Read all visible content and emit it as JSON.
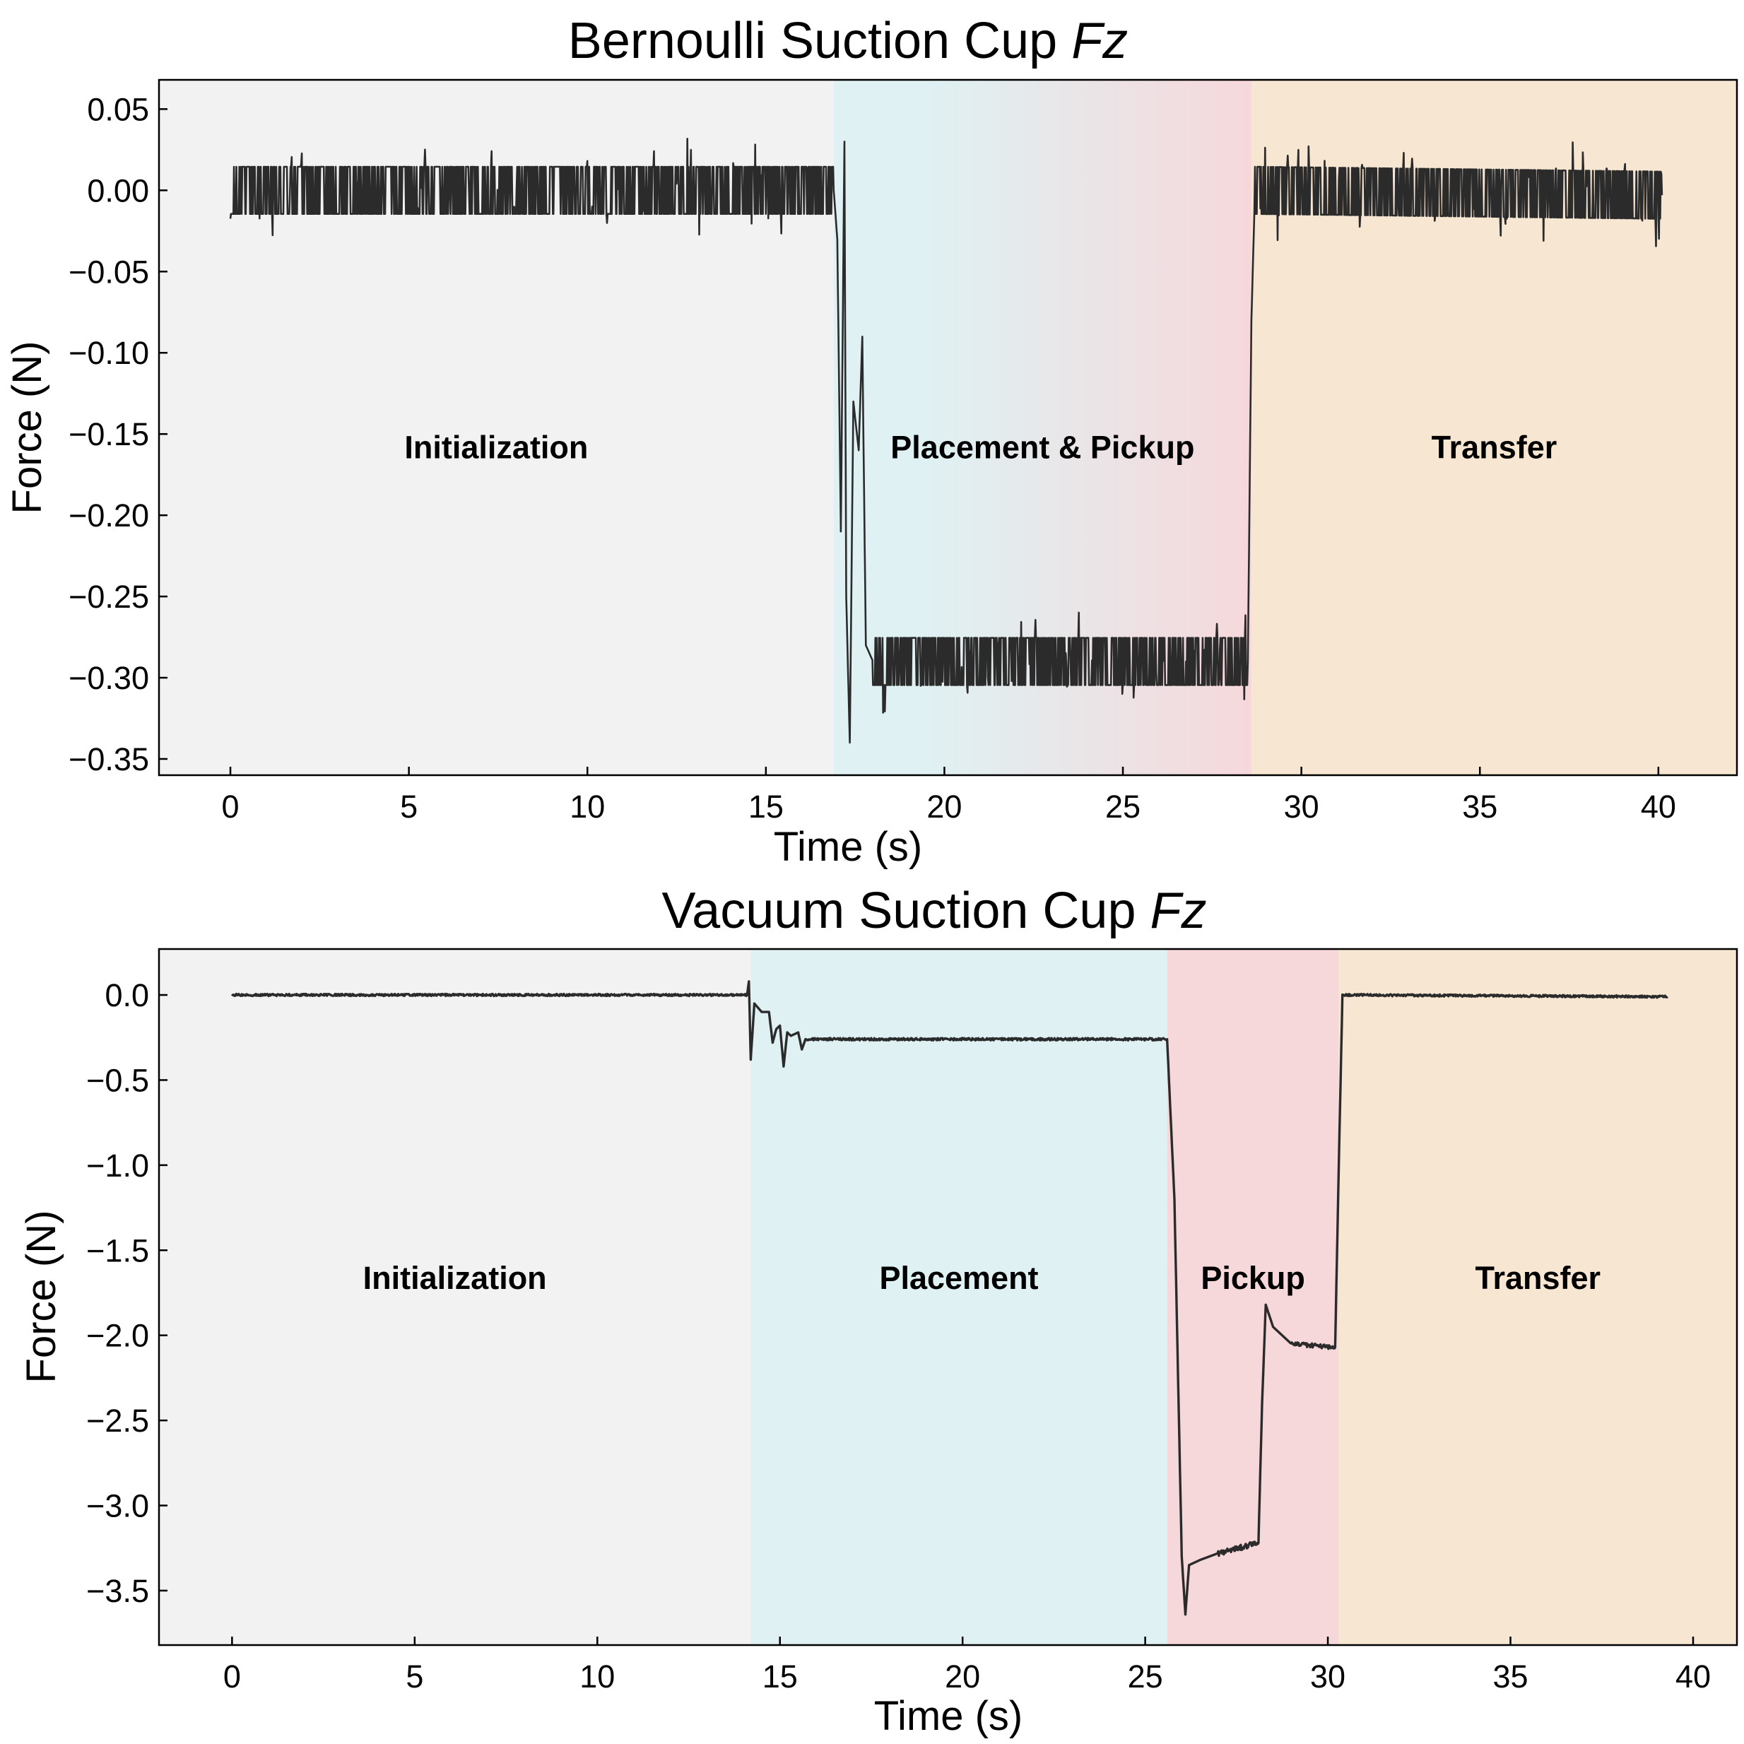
{
  "chart_data": [
    {
      "type": "line",
      "title": "Bernoulli Suction Cup ",
      "title_italic": "Fz",
      "xlabel": "Time (s)",
      "ylabel": "Force (N)",
      "xlim": [
        -2,
        42.2
      ],
      "ylim": [
        -0.36,
        0.068
      ],
      "xticks": [
        0,
        5,
        10,
        15,
        20,
        25,
        30,
        35,
        40
      ],
      "xtick_labels": [
        "0",
        "5",
        "10",
        "15",
        "20",
        "25",
        "30",
        "35",
        "40"
      ],
      "yticks": [
        0.05,
        0.0,
        -0.05,
        -0.1,
        -0.15,
        -0.2,
        -0.25,
        -0.3,
        -0.35
      ],
      "ytick_labels": [
        "0.05",
        "0.00",
        "−0.05",
        "−0.10",
        "−0.15",
        "−0.20",
        "−0.25",
        "−0.30",
        "−0.35"
      ],
      "phases": [
        {
          "label": "Initialization",
          "start": -2,
          "end": 16.9,
          "color": "#f2f2f2"
        },
        {
          "label": "Placement & Pickup",
          "start": 16.9,
          "end": 28.6,
          "color": "#dff1f3",
          "color_end": "#f6d8db"
        },
        {
          "label": "Transfer",
          "start": 28.6,
          "end": 42.2,
          "color": "#f6e6d2"
        }
      ],
      "phase_label_y": -0.158,
      "series": [
        {
          "name": "Fz",
          "color": "#2b2b2b",
          "color_end": "#3c2a20",
          "values": [
            [
              0.0,
              0.0
            ],
            [
              16.9,
              0.0
            ],
            [
              17.0,
              -0.03
            ],
            [
              17.1,
              -0.21
            ],
            [
              17.2,
              0.03
            ],
            [
              17.25,
              -0.25
            ],
            [
              17.35,
              -0.34
            ],
            [
              17.45,
              -0.13
            ],
            [
              17.6,
              -0.16
            ],
            [
              17.7,
              -0.09
            ],
            [
              17.8,
              -0.28
            ],
            [
              18.0,
              -0.29
            ],
            [
              28.5,
              -0.29
            ],
            [
              28.6,
              -0.08
            ],
            [
              28.7,
              0.0
            ],
            [
              40.1,
              -0.003
            ]
          ]
        }
      ]
    },
    {
      "type": "line",
      "title": "Vacuum Suction Cup ",
      "title_italic": "Fz",
      "xlabel": "Time (s)",
      "ylabel": "Force (N)",
      "xlim": [
        -2,
        41.2
      ],
      "ylim": [
        -3.82,
        0.27
      ],
      "xticks": [
        0,
        5,
        10,
        15,
        20,
        25,
        30,
        35,
        40
      ],
      "xtick_labels": [
        "0",
        "5",
        "10",
        "15",
        "20",
        "25",
        "30",
        "35",
        "40"
      ],
      "yticks": [
        0.0,
        -0.5,
        -1.0,
        -1.5,
        -2.0,
        -2.5,
        -3.0,
        -3.5
      ],
      "ytick_labels": [
        "0.0",
        "−0.5",
        "−1.0",
        "−1.5",
        "−2.0",
        "−2.5",
        "−3.0",
        "−3.5"
      ],
      "phases": [
        {
          "label": "Initialization",
          "start": -2,
          "end": 14.2,
          "color": "#f2f2f2"
        },
        {
          "label": "Placement",
          "start": 14.2,
          "end": 25.6,
          "color": "#dff1f3"
        },
        {
          "label": "Pickup",
          "start": 25.6,
          "end": 30.3,
          "color": "#f6d8db"
        },
        {
          "label": "Transfer",
          "start": 30.3,
          "end": 41.2,
          "color": "#f6e6d2"
        }
      ],
      "phase_label_y": -1.66,
      "series": [
        {
          "name": "Fz",
          "color": "#2b2b2b",
          "color_end": "#3c2a20",
          "values": [
            [
              0.0,
              0.0
            ],
            [
              14.1,
              0.0
            ],
            [
              14.15,
              0.08
            ],
            [
              14.2,
              -0.38
            ],
            [
              14.3,
              -0.05
            ],
            [
              14.5,
              -0.1
            ],
            [
              14.7,
              -0.1
            ],
            [
              14.8,
              -0.28
            ],
            [
              14.9,
              -0.2
            ],
            [
              15.0,
              -0.18
            ],
            [
              15.1,
              -0.42
            ],
            [
              15.2,
              -0.22
            ],
            [
              15.3,
              -0.24
            ],
            [
              15.5,
              -0.22
            ],
            [
              15.6,
              -0.32
            ],
            [
              15.7,
              -0.26
            ],
            [
              25.6,
              -0.26
            ],
            [
              25.8,
              -1.2
            ],
            [
              26.0,
              -3.3
            ],
            [
              26.1,
              -3.64
            ],
            [
              26.2,
              -3.35
            ],
            [
              26.5,
              -3.32
            ],
            [
              27.0,
              -3.28
            ],
            [
              28.1,
              -3.22
            ],
            [
              28.2,
              -2.4
            ],
            [
              28.3,
              -1.82
            ],
            [
              28.5,
              -1.95
            ],
            [
              29.0,
              -2.05
            ],
            [
              30.2,
              -2.07
            ],
            [
              30.3,
              -1.0
            ],
            [
              30.4,
              0.0
            ],
            [
              39.3,
              -0.01
            ]
          ]
        }
      ]
    }
  ]
}
